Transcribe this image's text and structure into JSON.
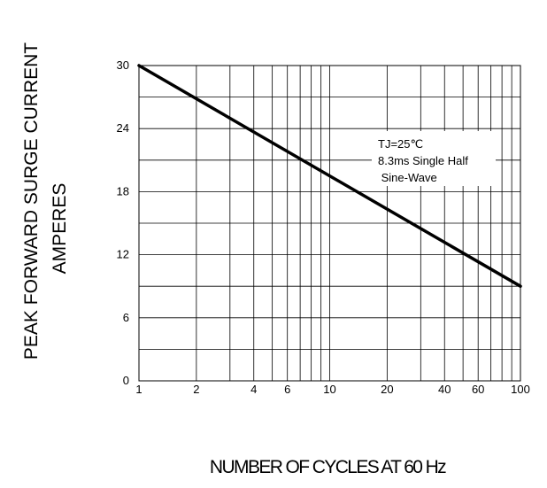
{
  "chart_data": {
    "type": "line",
    "xscale": "log",
    "xlim": [
      1,
      100
    ],
    "ylim": [
      0,
      30
    ],
    "grid": true,
    "x_ticks": [
      1,
      2,
      4,
      6,
      10,
      20,
      40,
      60,
      100
    ],
    "x_tick_labels": [
      "1",
      "2",
      "4",
      "6",
      "10",
      "20",
      "40",
      "60",
      "100"
    ],
    "x_minor_grid": [
      3,
      5,
      7,
      8,
      9,
      30,
      50,
      70,
      80,
      90
    ],
    "y_ticks": [
      0,
      6,
      12,
      18,
      24,
      30
    ],
    "y_tick_labels": [
      "0",
      "6",
      "12",
      "18",
      "24",
      "30"
    ],
    "y_minor_grid": [
      3,
      9,
      15,
      21,
      27
    ],
    "ylabel_lines": [
      "PEAK FORWARD SURGE CURRENT",
      "AMPERES"
    ],
    "xlabel": "NUMBER OF CYCLES AT 60 Hz",
    "series": [
      {
        "x": [
          1,
          100
        ],
        "y": [
          30,
          9
        ]
      }
    ],
    "annotation_lines": [
      "TJ=25℃",
      "8.3ms Single Half",
      " Sine-Wave"
    ],
    "colors": {
      "line": "#000000",
      "grid": "#000000",
      "background": "#ffffff"
    }
  }
}
